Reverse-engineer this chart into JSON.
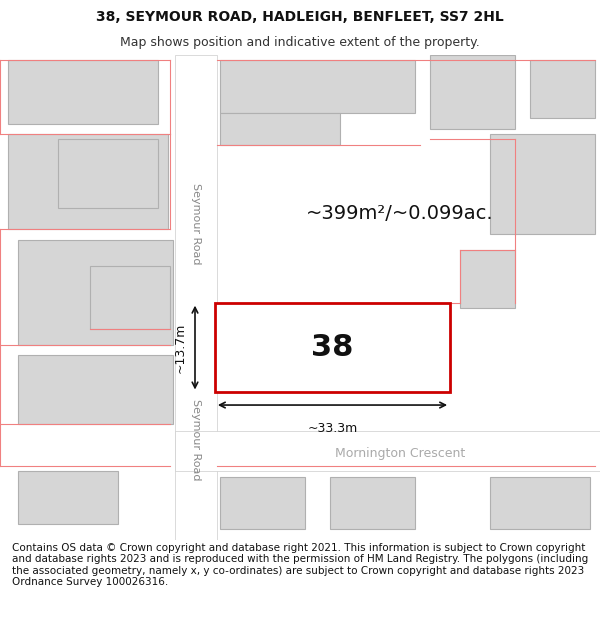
{
  "title_line1": "38, SEYMOUR ROAD, HADLEIGH, BENFLEET, SS7 2HL",
  "title_line2": "Map shows position and indicative extent of the property.",
  "footer_text": "Contains OS data © Crown copyright and database right 2021. This information is subject to Crown copyright and database rights 2023 and is reproduced with the permission of HM Land Registry. The polygons (including the associated geometry, namely x, y co-ordinates) are subject to Crown copyright and database rights 2023 Ordnance Survey 100026316.",
  "bg_color": "#ffffff",
  "map_bg": "#f5f5f5",
  "road_color": "#ffffff",
  "building_color": "#d6d6d6",
  "building_border": "#b0b0b0",
  "highlight_color": "#cc0000",
  "highlight_fill": "#ffffff",
  "pink_line": "#f08080",
  "road_label1": "Seymour Road",
  "road_label2": "Seymour Road",
  "road_label3": "Mornington Crescent",
  "area_text": "~399m²/~0.099ac.",
  "number_text": "38",
  "dim_width": "~33.3m",
  "dim_height": "~13.7m",
  "title_fontsize": 10,
  "subtitle_fontsize": 9,
  "footer_fontsize": 7.5,
  "area_fontsize": 14,
  "number_fontsize": 22,
  "dim_fontsize": 9,
  "road_fontsize": 8
}
